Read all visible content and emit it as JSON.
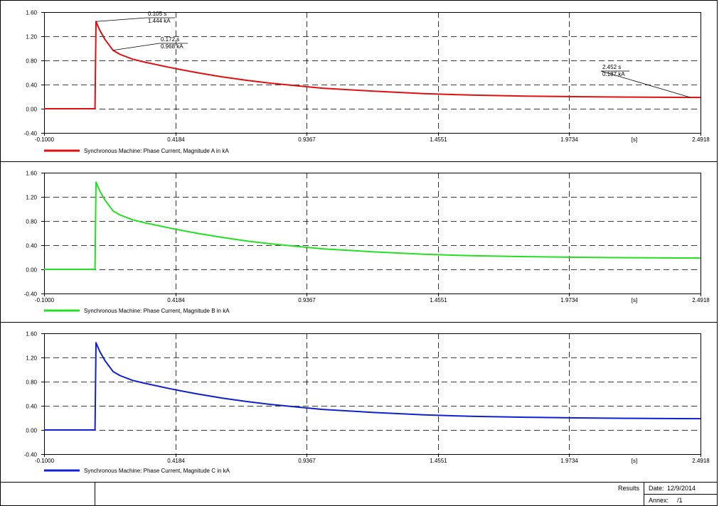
{
  "chart_data": [
    {
      "type": "line",
      "xlim": [
        -0.1,
        2.4918
      ],
      "ylim": [
        -0.4,
        1.6
      ],
      "x_ticks": [
        "-0.1000",
        "0.4184",
        "0.9367",
        "1.4551",
        "1.9734",
        "2.4918"
      ],
      "x_unit": "[s]",
      "y_ticks": [
        "1.60",
        "1.20",
        "0.80",
        "0.40",
        "0.00",
        "-0.40"
      ],
      "grid": true,
      "legend": "bottom-left",
      "series": [
        {
          "name": "Synchronous Machine: Phase Current, Magnitude A in kA",
          "color": "#e01010",
          "x": [
            -0.1,
            0.101,
            0.105,
            0.12,
            0.14,
            0.172,
            0.2,
            0.25,
            0.3,
            0.4,
            0.5,
            0.6,
            0.7,
            0.8,
            0.9,
            1.0,
            1.2,
            1.4,
            1.6,
            1.8,
            2.0,
            2.2,
            2.4,
            2.4918
          ],
          "y": [
            0.0,
            0.0,
            1.444,
            1.3,
            1.15,
            0.968,
            0.9,
            0.82,
            0.77,
            0.68,
            0.6,
            0.53,
            0.47,
            0.42,
            0.38,
            0.34,
            0.29,
            0.25,
            0.225,
            0.21,
            0.2,
            0.193,
            0.188,
            0.187
          ]
        }
      ],
      "annotations": [
        {
          "time": "0.105 s",
          "value": "1.444 kA",
          "x": 0.105,
          "y": 1.444
        },
        {
          "time": "0.172 s",
          "value": "0.968 kA",
          "x": 0.172,
          "y": 0.968
        },
        {
          "time": "2.452 s",
          "value": "0.187 kA",
          "x": 2.452,
          "y": 0.187
        }
      ]
    },
    {
      "type": "line",
      "xlim": [
        -0.1,
        2.4918
      ],
      "ylim": [
        -0.4,
        1.6
      ],
      "x_ticks": [
        "-0.1000",
        "0.4184",
        "0.9367",
        "1.4551",
        "1.9734",
        "2.4918"
      ],
      "x_unit": "[s]",
      "y_ticks": [
        "1.60",
        "1.20",
        "0.80",
        "0.40",
        "0.00",
        "-0.40"
      ],
      "grid": true,
      "legend": "bottom-left",
      "series": [
        {
          "name": "Synchronous Machine: Phase Current, Magnitude B in kA",
          "color": "#22e022",
          "x": [
            -0.1,
            0.101,
            0.105,
            0.12,
            0.14,
            0.172,
            0.2,
            0.25,
            0.3,
            0.4,
            0.5,
            0.6,
            0.7,
            0.8,
            0.9,
            1.0,
            1.2,
            1.4,
            1.6,
            1.8,
            2.0,
            2.2,
            2.4,
            2.4918
          ],
          "y": [
            0.0,
            0.0,
            1.444,
            1.3,
            1.15,
            0.968,
            0.9,
            0.82,
            0.77,
            0.68,
            0.6,
            0.53,
            0.47,
            0.42,
            0.38,
            0.34,
            0.29,
            0.25,
            0.225,
            0.21,
            0.2,
            0.193,
            0.188,
            0.187
          ]
        }
      ],
      "annotations": []
    },
    {
      "type": "line",
      "xlim": [
        -0.1,
        2.4918
      ],
      "ylim": [
        -0.4,
        1.6
      ],
      "x_ticks": [
        "-0.1000",
        "0.4184",
        "0.9367",
        "1.4551",
        "1.9734",
        "2.4918"
      ],
      "x_unit": "[s]",
      "y_ticks": [
        "1.60",
        "1.20",
        "0.80",
        "0.40",
        "0.00",
        "-0.40"
      ],
      "grid": true,
      "legend": "bottom-left",
      "series": [
        {
          "name": "Synchronous Machine: Phase Current, Magnitude C in kA",
          "color": "#1020d0",
          "x": [
            -0.1,
            0.101,
            0.105,
            0.12,
            0.14,
            0.172,
            0.2,
            0.25,
            0.3,
            0.4,
            0.5,
            0.6,
            0.7,
            0.8,
            0.9,
            1.0,
            1.2,
            1.4,
            1.6,
            1.8,
            2.0,
            2.2,
            2.4,
            2.4918
          ],
          "y": [
            0.0,
            0.0,
            1.444,
            1.3,
            1.15,
            0.968,
            0.9,
            0.82,
            0.77,
            0.68,
            0.6,
            0.53,
            0.47,
            0.42,
            0.38,
            0.34,
            0.29,
            0.25,
            0.225,
            0.21,
            0.2,
            0.193,
            0.188,
            0.187
          ]
        }
      ],
      "annotations": []
    }
  ],
  "footer": {
    "results_label": "Results",
    "date_label": "Date:",
    "date_value": "12/9/2014",
    "annex_label": "Annex:",
    "annex_value": "/1"
  }
}
